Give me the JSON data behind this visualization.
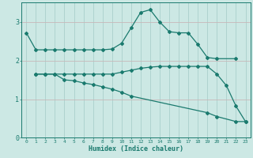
{
  "xlabel": "Humidex (Indice chaleur)",
  "bg_color": "#cce8e4",
  "line_color": "#1a7a6e",
  "grid_v_color": "#aacfcb",
  "grid_h_color": "#c8b8b8",
  "xlim": [
    -0.5,
    23.5
  ],
  "ylim": [
    0,
    3.5
  ],
  "yticks": [
    0,
    1,
    2,
    3
  ],
  "xticks": [
    0,
    1,
    2,
    3,
    4,
    5,
    6,
    7,
    8,
    9,
    10,
    11,
    12,
    13,
    14,
    15,
    16,
    17,
    18,
    19,
    20,
    21,
    22,
    23
  ],
  "line1_x": [
    0,
    1,
    2,
    3,
    4,
    5,
    6,
    7,
    8,
    9,
    10,
    11,
    12,
    13,
    14,
    15,
    16,
    17,
    18,
    19,
    20,
    22
  ],
  "line1_y": [
    2.72,
    2.28,
    2.28,
    2.28,
    2.28,
    2.28,
    2.28,
    2.28,
    2.28,
    2.3,
    2.45,
    2.85,
    3.25,
    3.32,
    3.0,
    2.75,
    2.72,
    2.72,
    2.42,
    2.08,
    2.05,
    2.05
  ],
  "line2_x": [
    1,
    2,
    3,
    4,
    5,
    6,
    7,
    8,
    9,
    10,
    11,
    12,
    13,
    14,
    15,
    16,
    17,
    18,
    19,
    20,
    21,
    22,
    23
  ],
  "line2_y": [
    1.65,
    1.65,
    1.65,
    1.65,
    1.65,
    1.65,
    1.65,
    1.65,
    1.65,
    1.7,
    1.75,
    1.8,
    1.83,
    1.85,
    1.85,
    1.85,
    1.85,
    1.85,
    1.85,
    1.65,
    1.35,
    0.82,
    0.42
  ],
  "line3_x": [
    1,
    2,
    3,
    4,
    5,
    6,
    7,
    8,
    9,
    10,
    11,
    19,
    20,
    22,
    23
  ],
  "line3_y": [
    1.65,
    1.65,
    1.65,
    1.5,
    1.48,
    1.42,
    1.38,
    1.32,
    1.26,
    1.18,
    1.08,
    0.65,
    0.55,
    0.42,
    0.42
  ]
}
